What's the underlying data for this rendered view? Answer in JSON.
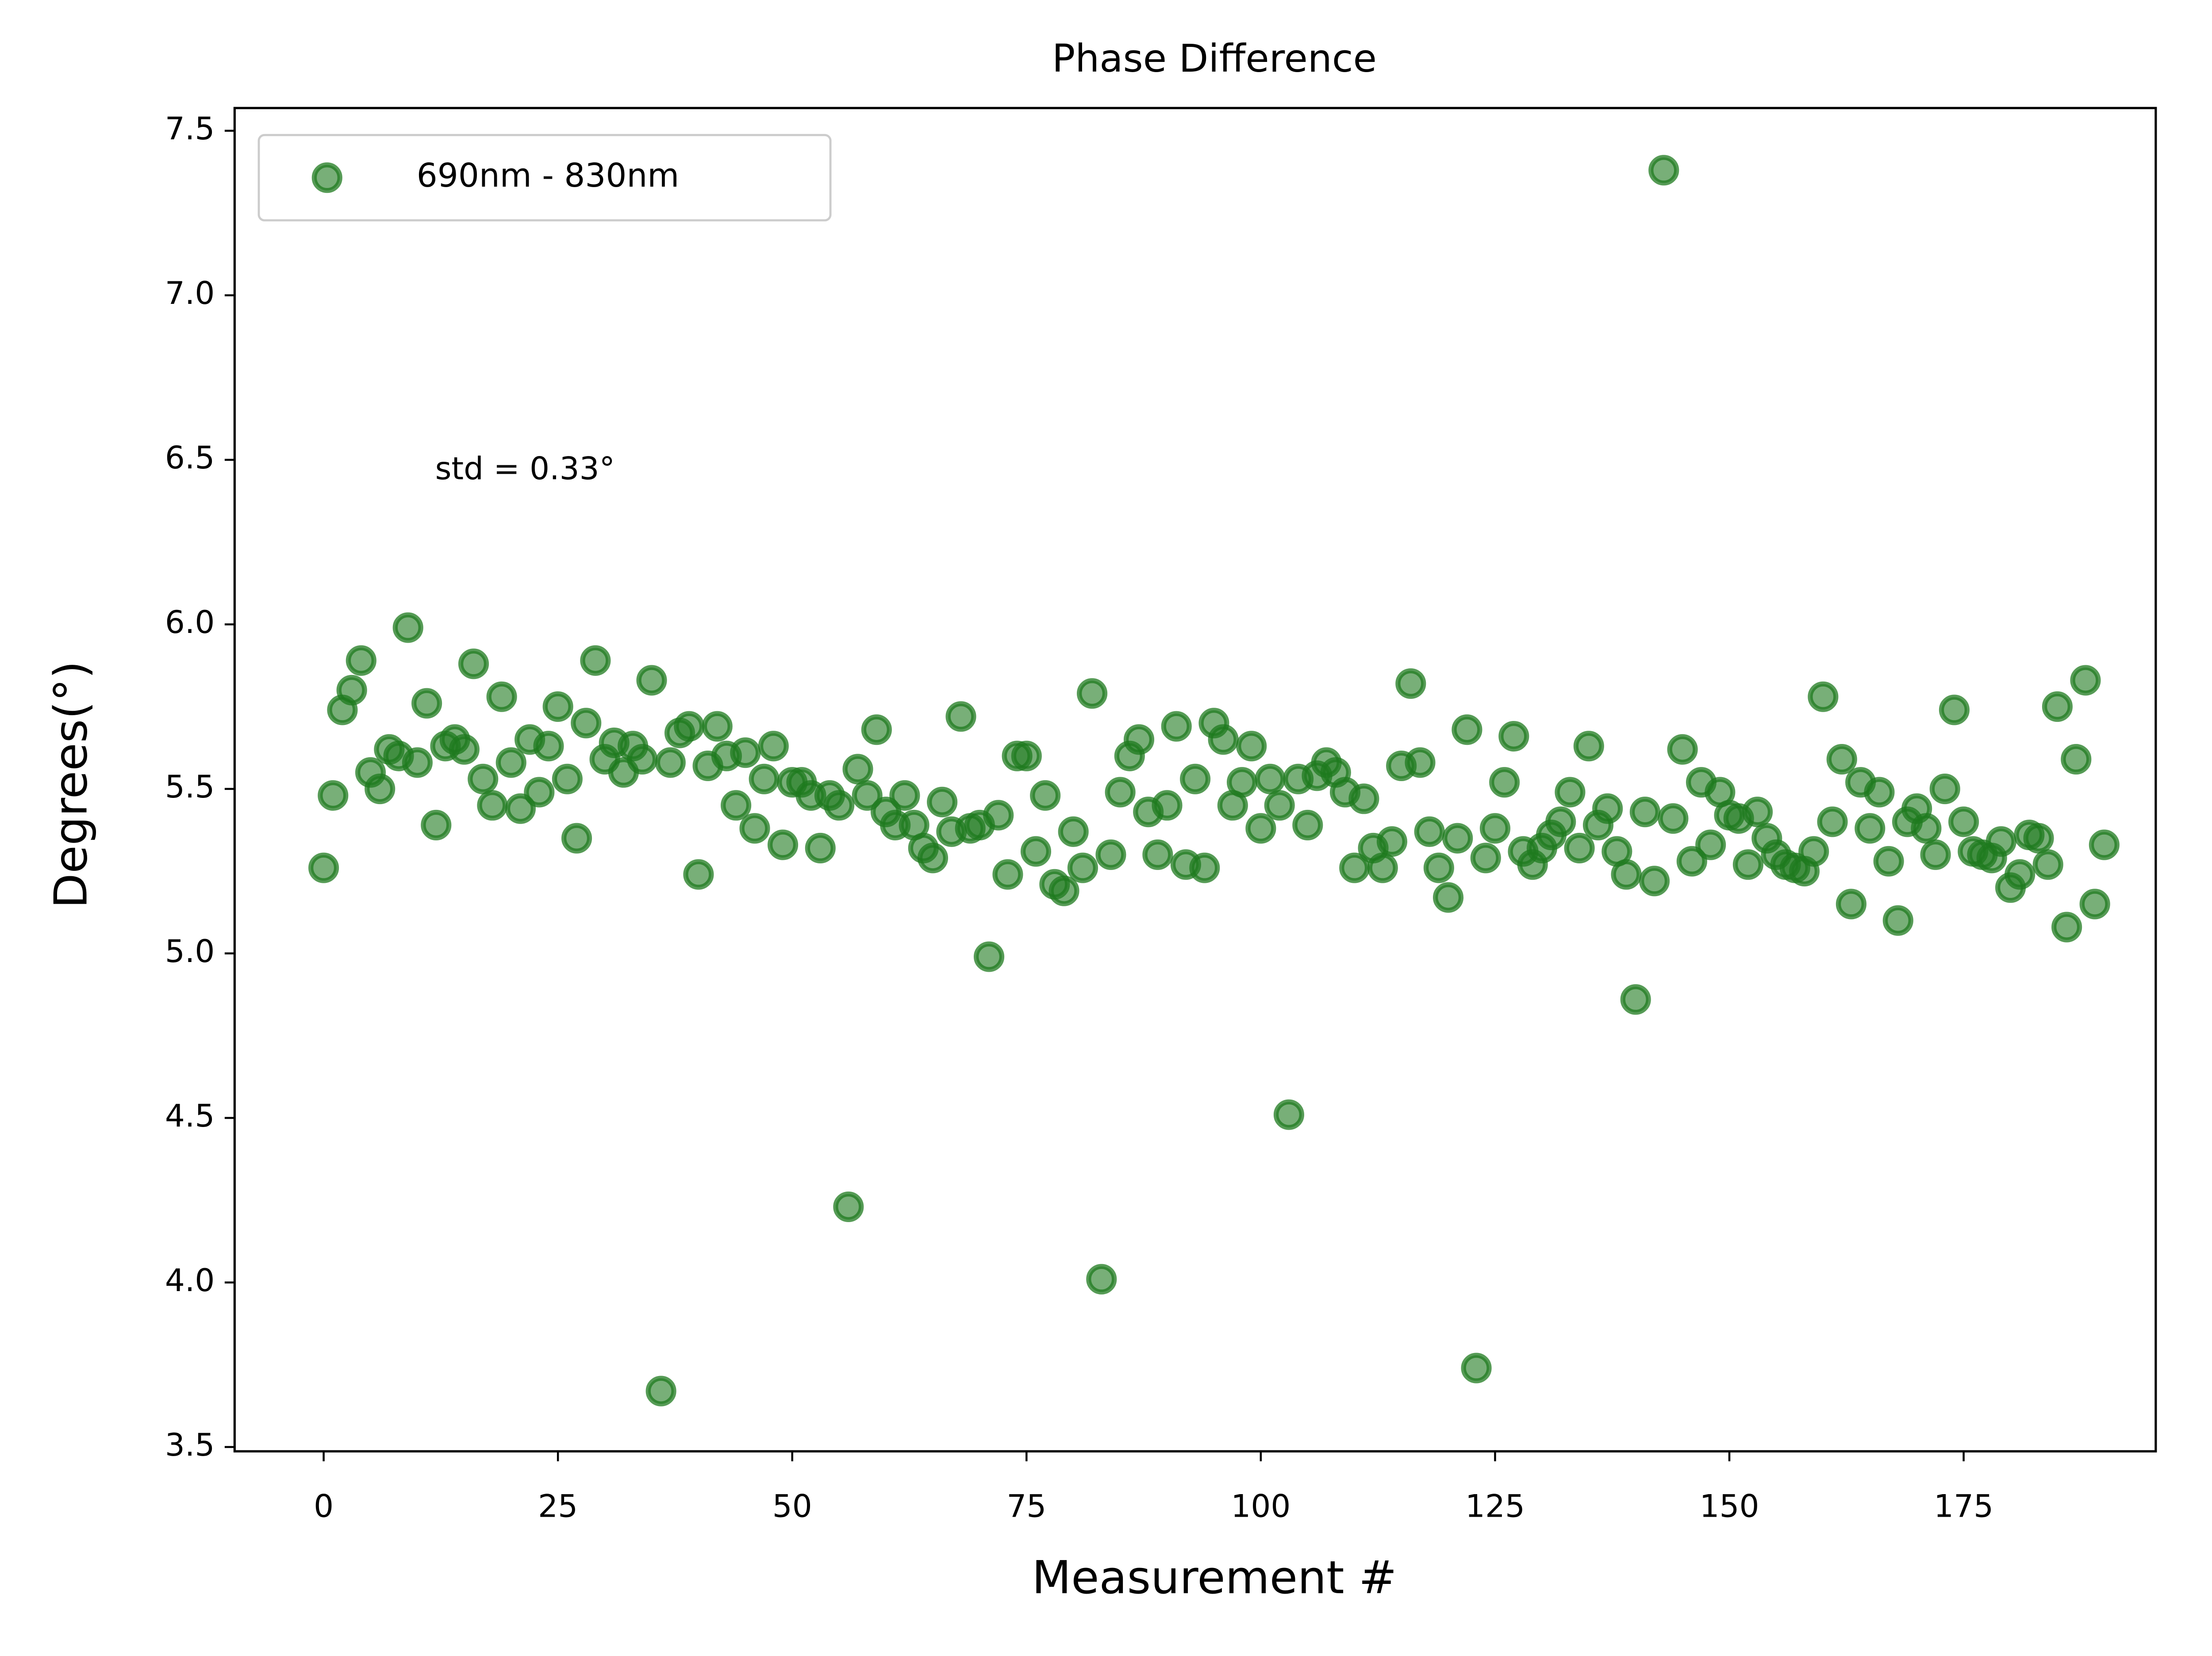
{
  "chart_data": {
    "type": "scatter",
    "title": "Phase Difference",
    "x_label": "Measurement #",
    "y_label": "Degrees(°)",
    "annotation": "std = 0.33°",
    "legend": "upper left",
    "xlim": [
      -9.5,
      195.5
    ],
    "xticks": [
      0,
      25,
      50,
      75,
      100,
      125,
      150,
      175
    ],
    "ylim": [
      3.487,
      7.569
    ],
    "yticks": [
      3.5,
      {
        "value": 4,
        "label": "4.0"
      },
      4.5,
      {
        "value": 5,
        "label": "5.0"
      },
      5.5,
      {
        "value": 6,
        "label": "6.0"
      },
      6.5,
      {
        "value": 7,
        "label": "7.0"
      },
      7.5
    ],
    "series": [
      {
        "name": "690nm - 830nm",
        "color": "#1e7a1e",
        "x": [
          0,
          1,
          2,
          3,
          4,
          5,
          6,
          7,
          8,
          9,
          10,
          11,
          12,
          13,
          14,
          15,
          16,
          17,
          18,
          19,
          20,
          21,
          22,
          23,
          24,
          25,
          26,
          27,
          28,
          29,
          30,
          31,
          32,
          33,
          34,
          35,
          36,
          37,
          38,
          39,
          40,
          41,
          42,
          43,
          44,
          45,
          46,
          47,
          48,
          49,
          50,
          51,
          52,
          53,
          54,
          55,
          56,
          57,
          58,
          59,
          60,
          61,
          62,
          63,
          64,
          65,
          66,
          67,
          68,
          69,
          70,
          71,
          72,
          73,
          74,
          75,
          76,
          77,
          78,
          79,
          80,
          81,
          82,
          83,
          84,
          85,
          86,
          87,
          88,
          89,
          90,
          91,
          92,
          93,
          94,
          95,
          96,
          97,
          98,
          99,
          100,
          101,
          102,
          103,
          104,
          105,
          106,
          107,
          108,
          109,
          110,
          111,
          112,
          113,
          114,
          115,
          116,
          117,
          118,
          119,
          120,
          121,
          122,
          123,
          124,
          125,
          126,
          127,
          128,
          129,
          130,
          131,
          132,
          133,
          134,
          135,
          136,
          137,
          138,
          139,
          140,
          141,
          142,
          143,
          144,
          145,
          146,
          147,
          148,
          149,
          150,
          151,
          152,
          153,
          154,
          155,
          156,
          157,
          158,
          159,
          160,
          161,
          162,
          163,
          164,
          165,
          166,
          167,
          168,
          169,
          170,
          171,
          172,
          173,
          174,
          175,
          176,
          177,
          178,
          179,
          180,
          181,
          182,
          183,
          184,
          185,
          186,
          187,
          188,
          189,
          190
        ],
        "values": [
          5.26,
          5.48,
          5.74,
          5.8,
          5.89,
          5.55,
          5.5,
          5.62,
          5.6,
          5.99,
          5.58,
          5.76,
          5.39,
          5.63,
          5.65,
          5.62,
          5.88,
          5.53,
          5.45,
          5.78,
          5.58,
          5.44,
          5.65,
          5.49,
          5.63,
          5.75,
          5.53,
          5.35,
          5.7,
          5.89,
          5.59,
          5.64,
          5.55,
          5.63,
          5.59,
          5.83,
          3.67,
          5.58,
          5.67,
          5.69,
          5.24,
          5.57,
          5.69,
          5.6,
          5.45,
          5.61,
          5.38,
          5.53,
          5.63,
          5.33,
          5.52,
          5.52,
          5.48,
          5.32,
          5.48,
          5.45,
          4.23,
          5.56,
          5.48,
          5.68,
          5.43,
          5.39,
          5.48,
          5.39,
          5.32,
          5.29,
          5.46,
          5.37,
          5.72,
          5.38,
          5.39,
          4.99,
          5.42,
          5.24,
          5.6,
          5.6,
          5.31,
          5.48,
          5.21,
          5.19,
          5.37,
          5.26,
          5.79,
          4.01,
          5.3,
          5.49,
          5.6,
          5.65,
          5.43,
          5.3,
          5.45,
          5.69,
          5.27,
          5.53,
          5.26,
          5.7,
          5.65,
          5.45,
          5.52,
          5.63,
          5.38,
          5.53,
          5.45,
          4.51,
          5.53,
          5.39,
          5.54,
          5.58,
          5.55,
          5.49,
          5.26,
          5.47,
          5.32,
          5.26,
          5.34,
          5.57,
          5.82,
          5.58,
          5.37,
          5.26,
          5.17,
          5.35,
          5.68,
          3.74,
          5.29,
          5.38,
          5.52,
          5.66,
          5.31,
          5.27,
          5.32,
          5.36,
          5.4,
          5.49,
          5.32,
          5.63,
          5.39,
          5.44,
          5.31,
          5.24,
          4.86,
          5.43,
          5.22,
          7.38,
          5.41,
          5.62,
          5.28,
          5.52,
          5.33,
          5.49,
          5.42,
          5.41,
          5.27,
          5.43,
          5.35,
          5.3,
          5.27,
          5.26,
          5.25,
          5.31,
          5.78,
          5.4,
          5.59,
          5.15,
          5.52,
          5.38,
          5.49,
          5.28,
          5.1,
          5.4,
          5.44,
          5.38,
          5.3,
          5.5,
          5.74,
          5.4,
          5.31,
          5.3,
          5.29,
          5.34,
          5.2,
          5.24,
          5.36,
          5.35,
          5.27,
          5.75,
          5.08,
          5.59,
          5.83,
          5.15,
          5.33
        ]
      }
    ]
  }
}
